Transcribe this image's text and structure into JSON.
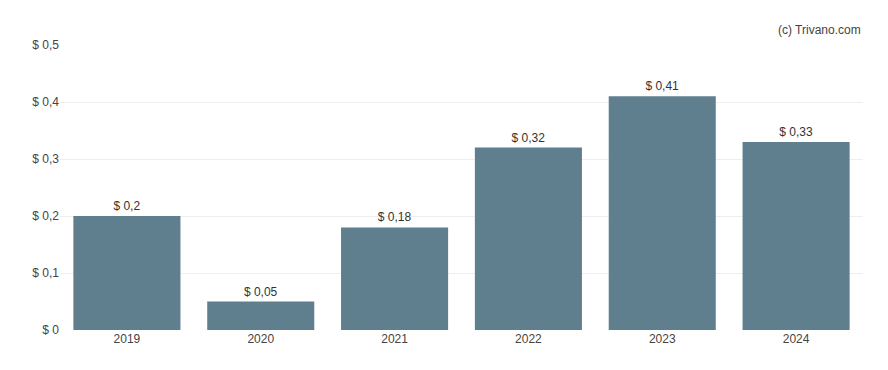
{
  "chart_data": {
    "type": "bar",
    "categories": [
      "2019",
      "2020",
      "2021",
      "2022",
      "2023",
      "2024"
    ],
    "values": [
      0.2,
      0.05,
      0.18,
      0.32,
      0.41,
      0.33
    ],
    "value_labels": [
      "$ 0,2",
      "$ 0,05",
      "$ 0,18",
      "$ 0,32",
      "$ 0,41",
      "$ 0,33"
    ],
    "data_labels": true,
    "color": "#5f7f8f",
    "ylim": [
      0,
      0.5
    ],
    "yticks": [
      {
        "value": 0,
        "label": "$ 0"
      },
      {
        "value": 0.1,
        "label": "$ 0,1"
      },
      {
        "value": 0.2,
        "label": "$ 0,2"
      },
      {
        "value": 0.3,
        "label": "$ 0,3"
      },
      {
        "value": 0.4,
        "label": "$ 0,4"
      },
      {
        "value": 0.5,
        "label": "$ 0,5"
      }
    ],
    "grid": true,
    "annotations": [
      "(c) Trivano.com"
    ]
  }
}
